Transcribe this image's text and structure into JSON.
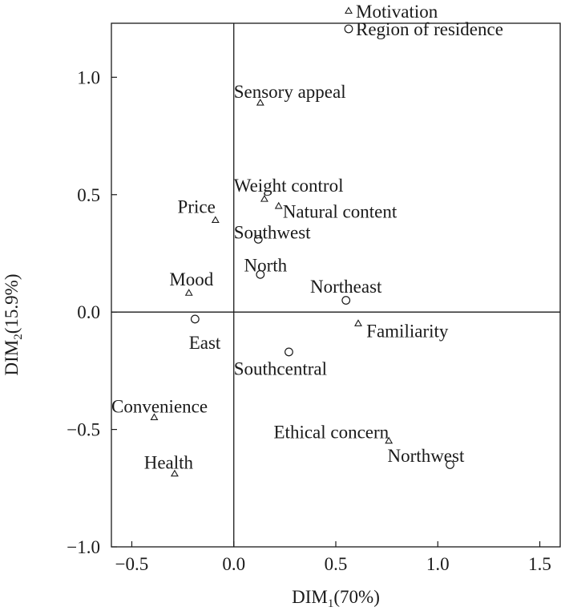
{
  "chart_data": {
    "type": "scatter",
    "xlabel": {
      "base": "DIM",
      "sub": "1",
      "suffix": "(70%)"
    },
    "ylabel": {
      "base": "DIM",
      "sub": "2",
      "suffix": "(15.9%)"
    },
    "xlim": [
      -0.6,
      1.6
    ],
    "ylim": [
      -1.0,
      1.23
    ],
    "xticks": [
      -0.5,
      0.0,
      0.5,
      1.0,
      1.5
    ],
    "xtick_labels": [
      "−0.5",
      "0.0",
      "0.5",
      "1.0",
      "1.5"
    ],
    "yticks": [
      1.0,
      0.5,
      0.0,
      -0.5,
      -1.0
    ],
    "ytick_labels": [
      "1.0",
      "0.5",
      "0.0",
      "−0.5",
      "−1.0"
    ],
    "grid": false,
    "reference_lines": {
      "x": 0,
      "y": 0
    },
    "legend": {
      "placement": "top-right, outside plot",
      "entries": [
        {
          "name": "Motivation",
          "marker": "triangle"
        },
        {
          "name": "Region of residence",
          "marker": "circle"
        }
      ]
    },
    "series": [
      {
        "name": "Motivation",
        "marker": "triangle",
        "points": [
          {
            "label": "Sensory appeal",
            "x": 0.13,
            "y": 0.89,
            "anchor": "start",
            "dx": -0.13,
            "dy": 0.05
          },
          {
            "label": "Weight control",
            "x": 0.15,
            "y": 0.48,
            "anchor": "start",
            "dx": -0.15,
            "dy": 0.06
          },
          {
            "label": "Natural content",
            "x": 0.22,
            "y": 0.45,
            "anchor": "start",
            "dx": 0.02,
            "dy": -0.02
          },
          {
            "label": "Price",
            "x": -0.09,
            "y": 0.39,
            "anchor": "end",
            "dx": 0.0,
            "dy": 0.06
          },
          {
            "label": "Mood",
            "x": -0.22,
            "y": 0.08,
            "anchor": "end",
            "dx": 0.12,
            "dy": 0.06
          },
          {
            "label": "Familiarity",
            "x": 0.61,
            "y": -0.05,
            "anchor": "start",
            "dx": 0.04,
            "dy": -0.03
          },
          {
            "label": "Convenience",
            "x": -0.39,
            "y": -0.45,
            "anchor": "start",
            "dx": -0.21,
            "dy": 0.05
          },
          {
            "label": "Health",
            "x": -0.29,
            "y": -0.69,
            "anchor": "start",
            "dx": -0.15,
            "dy": 0.05
          },
          {
            "label": "Ethical concern",
            "x": 0.76,
            "y": -0.55,
            "anchor": "end",
            "dx": 0.0,
            "dy": 0.04
          }
        ]
      },
      {
        "name": "Region of residence",
        "marker": "circle",
        "points": [
          {
            "label": "Southwest",
            "x": 0.12,
            "y": 0.31,
            "anchor": "start",
            "dx": -0.12,
            "dy": 0.03
          },
          {
            "label": "North",
            "x": 0.13,
            "y": 0.16,
            "anchor": "start",
            "dx": -0.08,
            "dy": 0.04
          },
          {
            "label": "Northeast",
            "x": 0.55,
            "y": 0.05,
            "anchor": "middle",
            "dx": 0.0,
            "dy": 0.06
          },
          {
            "label": "East",
            "x": -0.19,
            "y": -0.03,
            "anchor": "start",
            "dx": -0.03,
            "dy": -0.1
          },
          {
            "label": "Southcentral",
            "x": 0.27,
            "y": -0.17,
            "anchor": "start",
            "dx": -0.27,
            "dy": -0.07
          },
          {
            "label": "Northwest",
            "x": 1.06,
            "y": -0.65,
            "anchor": "end",
            "dx": 0.07,
            "dy": 0.04
          }
        ]
      }
    ]
  }
}
